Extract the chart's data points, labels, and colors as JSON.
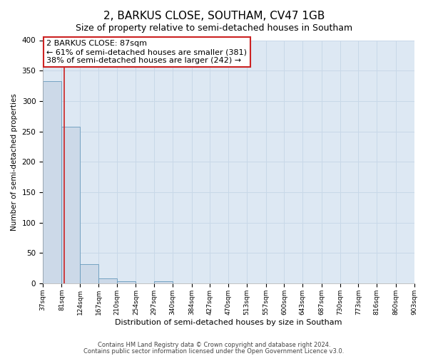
{
  "title": "2, BARKUS CLOSE, SOUTHAM, CV47 1GB",
  "subtitle": "Size of property relative to semi-detached houses in Southam",
  "xlabel": "Distribution of semi-detached houses by size in Southam",
  "ylabel": "Number of semi-detached properties",
  "footer_line1": "Contains HM Land Registry data © Crown copyright and database right 2024.",
  "footer_line2": "Contains public sector information licensed under the Open Government Licence v3.0.",
  "annotation_title": "2 BARKUS CLOSE: 87sqm",
  "annotation_line1": "← 61% of semi-detached houses are smaller (381)",
  "annotation_line2": "38% of semi-detached houses are larger (242) →",
  "bar_edges": [
    37,
    81,
    124,
    167,
    210,
    254,
    297,
    340,
    384,
    427,
    470,
    513,
    557,
    600,
    643,
    687,
    730,
    773,
    816,
    860,
    903
  ],
  "bar_heights": [
    333,
    258,
    32,
    8,
    3,
    0,
    3,
    0,
    0,
    0,
    0,
    0,
    0,
    0,
    0,
    0,
    0,
    0,
    0,
    0
  ],
  "bar_color": "#ccd9e8",
  "bar_edge_color": "#6699bb",
  "red_line_x": 87,
  "ylim": [
    0,
    400
  ],
  "yticks": [
    0,
    50,
    100,
    150,
    200,
    250,
    300,
    350,
    400
  ],
  "grid_color": "#c8d8e8",
  "background_color": "#dde8f3",
  "annotation_box_color": "white",
  "annotation_box_edge": "#cc2222",
  "red_line_color": "#cc2222",
  "title_fontsize": 11,
  "subtitle_fontsize": 9,
  "xlabel_fontsize": 8,
  "ylabel_fontsize": 7.5,
  "tick_labels": [
    "37sqm",
    "81sqm",
    "124sqm",
    "167sqm",
    "210sqm",
    "254sqm",
    "297sqm",
    "340sqm",
    "384sqm",
    "427sqm",
    "470sqm",
    "513sqm",
    "557sqm",
    "600sqm",
    "643sqm",
    "687sqm",
    "730sqm",
    "773sqm",
    "816sqm",
    "860sqm",
    "903sqm"
  ]
}
